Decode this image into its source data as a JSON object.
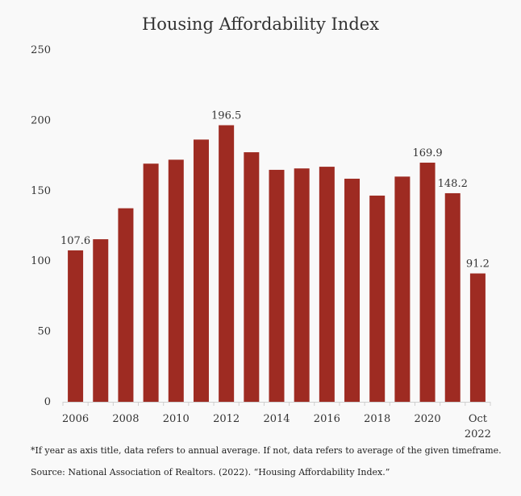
{
  "chart_data": {
    "type": "bar",
    "title": "Housing Affordability Index",
    "xlabel": "",
    "ylabel": "",
    "ylim": [
      0,
      250
    ],
    "yticks": [
      0,
      50,
      100,
      150,
      200,
      250
    ],
    "grid": false,
    "color": "#9e2b22",
    "categories": [
      "2006",
      "2007",
      "2008",
      "2009",
      "2010",
      "2011",
      "2012",
      "2013",
      "2014",
      "2015",
      "2016",
      "2017",
      "2018",
      "2019",
      "2020",
      "2021",
      "Oct 2022"
    ],
    "x_tick_labels": [
      {
        "category_index": 0,
        "lines": [
          "2006"
        ]
      },
      {
        "category_index": 2,
        "lines": [
          "2008"
        ]
      },
      {
        "category_index": 4,
        "lines": [
          "2010"
        ]
      },
      {
        "category_index": 6,
        "lines": [
          "2012"
        ]
      },
      {
        "category_index": 8,
        "lines": [
          "2014"
        ]
      },
      {
        "category_index": 10,
        "lines": [
          "2016"
        ]
      },
      {
        "category_index": 12,
        "lines": [
          "2018"
        ]
      },
      {
        "category_index": 14,
        "lines": [
          "2020"
        ]
      },
      {
        "category_index": 16,
        "lines": [
          "Oct",
          "2022"
        ]
      }
    ],
    "values": [
      107.6,
      115.5,
      137.5,
      169.2,
      172.0,
      186.3,
      196.5,
      177.3,
      164.8,
      165.8,
      167.0,
      158.5,
      146.5,
      160.0,
      169.9,
      148.2,
      91.2
    ],
    "data_labels": [
      {
        "category_index": 0,
        "text": "107.6"
      },
      {
        "category_index": 6,
        "text": "196.5"
      },
      {
        "category_index": 14,
        "text": "169.9"
      },
      {
        "category_index": 15,
        "text": "148.2"
      },
      {
        "category_index": 16,
        "text": "91.2"
      }
    ]
  },
  "footnotes": {
    "note": "*If year as axis title, data refers to annual average. If not, data refers to average of the given timeframe.",
    "source": "Source: National Association of Realtors. (2022). “Housing Affordability Index.”"
  }
}
